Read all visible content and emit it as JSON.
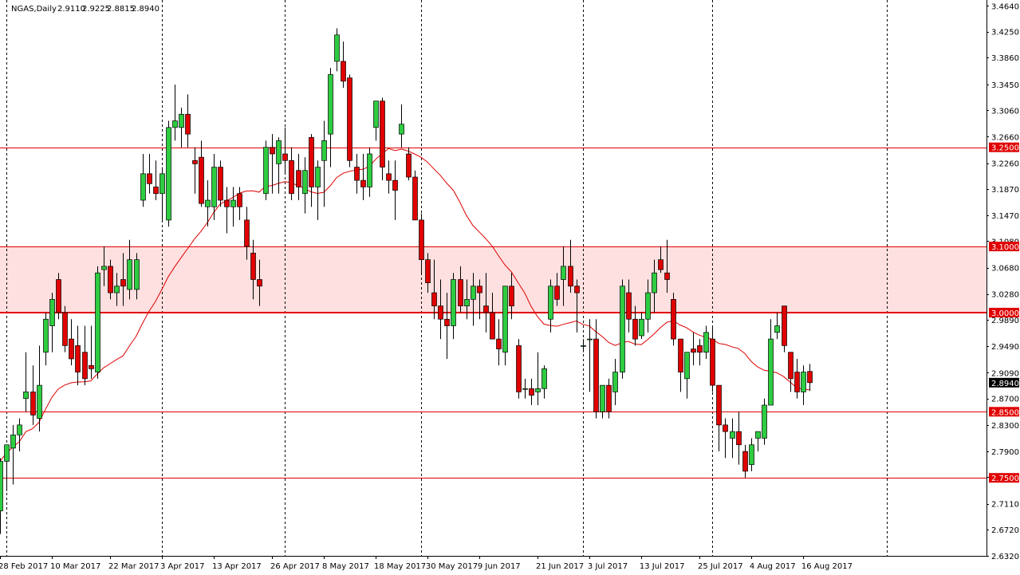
{
  "header": {
    "symbol": "NGAS,Daily",
    "open": "2.9110",
    "high": "2.9225",
    "low": "2.8815",
    "close": "2.8940"
  },
  "colors": {
    "bull": "#2ecc40",
    "bear": "#e00000",
    "wick": "#000000",
    "level_line": "#e00000",
    "zone_fill": "#ffe0e0",
    "ma": "#e00000",
    "price_tag_bg": "#000000",
    "level_tag_bg": "#e00000",
    "grid": "#000000"
  },
  "chart_data": {
    "type": "candlestick",
    "title": "NGAS,Daily",
    "ylim": [
      2.632,
      3.468
    ],
    "y_ticks": [
      "3.4640",
      "3.4250",
      "3.3860",
      "3.3450",
      "3.3060",
      "3.2660",
      "3.2260",
      "3.1870",
      "3.1470",
      "3.1080",
      "3.0680",
      "3.0280",
      "2.9890",
      "2.9490",
      "2.9090",
      "2.8700",
      "2.8300",
      "2.7900",
      "2.7510",
      "2.7110",
      "2.6720",
      "2.6320"
    ],
    "x_ticks": [
      "28 Feb 2017",
      "10 Mar 2017",
      "22 Mar 2017",
      "3 Apr 2017",
      "13 Apr 2017",
      "26 Apr 2017",
      "8 May 2017",
      "18 May 2017",
      "30 May 2017",
      "9 Jun 2017",
      "21 Jun 2017",
      "3 Jul 2017",
      "13 Jul 2017",
      "25 Jul 2017",
      "4 Aug 2017",
      "16 Aug 2017"
    ],
    "x_tick_candle_index": [
      0,
      8,
      17,
      25,
      33,
      42,
      50,
      58,
      66,
      74,
      83,
      91,
      99,
      108,
      116,
      124
    ],
    "weekly_separators_at_candle": [
      1,
      25,
      44,
      65,
      90,
      110,
      137
    ],
    "levels": [
      {
        "value": 3.25,
        "label": "3.2500",
        "width": 1
      },
      {
        "value": 3.1,
        "label": "3.1000",
        "width": 1
      },
      {
        "value": 3.0,
        "label": "3.0000",
        "width": 2
      },
      {
        "value": 2.85,
        "label": "2.8500",
        "width": 1
      },
      {
        "value": 2.75,
        "label": "2.7500",
        "width": 1
      }
    ],
    "zone": {
      "from": 3.0,
      "to": 3.1
    },
    "last_price": "2.8940",
    "candles": [
      {
        "o": 2.7,
        "h": 2.78,
        "l": 2.665,
        "c": 2.775
      },
      {
        "o": 2.775,
        "h": 2.8,
        "l": 2.73,
        "c": 2.8
      },
      {
        "o": 2.795,
        "h": 2.83,
        "l": 2.74,
        "c": 2.815
      },
      {
        "o": 2.815,
        "h": 2.84,
        "l": 2.79,
        "c": 2.83
      },
      {
        "o": 2.87,
        "h": 2.94,
        "l": 2.85,
        "c": 2.88
      },
      {
        "o": 2.88,
        "h": 2.92,
        "l": 2.83,
        "c": 2.845
      },
      {
        "o": 2.84,
        "h": 2.95,
        "l": 2.82,
        "c": 2.89
      },
      {
        "o": 2.94,
        "h": 3.0,
        "l": 2.92,
        "c": 2.99
      },
      {
        "o": 2.98,
        "h": 3.03,
        "l": 2.94,
        "c": 3.02
      },
      {
        "o": 3.05,
        "h": 3.06,
        "l": 2.99,
        "c": 3.0
      },
      {
        "o": 3.0,
        "h": 3.01,
        "l": 2.94,
        "c": 2.95
      },
      {
        "o": 2.96,
        "h": 2.99,
        "l": 2.92,
        "c": 2.93
      },
      {
        "o": 2.95,
        "h": 2.98,
        "l": 2.89,
        "c": 2.91
      },
      {
        "o": 2.94,
        "h": 2.98,
        "l": 2.89,
        "c": 2.9
      },
      {
        "o": 2.92,
        "h": 2.98,
        "l": 2.9,
        "c": 2.915
      },
      {
        "o": 2.91,
        "h": 3.07,
        "l": 2.9,
        "c": 3.06
      },
      {
        "o": 3.065,
        "h": 3.1,
        "l": 3.04,
        "c": 3.07
      },
      {
        "o": 3.07,
        "h": 3.08,
        "l": 3.02,
        "c": 3.03
      },
      {
        "o": 3.03,
        "h": 3.06,
        "l": 3.01,
        "c": 3.04
      },
      {
        "o": 3.05,
        "h": 3.09,
        "l": 3.01,
        "c": 3.04
      },
      {
        "o": 3.035,
        "h": 3.11,
        "l": 3.02,
        "c": 3.08
      },
      {
        "o": 3.035,
        "h": 3.09,
        "l": 3.02,
        "c": 3.08
      },
      {
        "o": 3.17,
        "h": 3.24,
        "l": 3.16,
        "c": 3.21
      },
      {
        "o": 3.21,
        "h": 3.24,
        "l": 3.18,
        "c": 3.195
      },
      {
        "o": 3.19,
        "h": 3.23,
        "l": 3.17,
        "c": 3.18
      },
      {
        "o": 3.18,
        "h": 3.22,
        "l": 3.14,
        "c": 3.21
      },
      {
        "o": 3.14,
        "h": 3.29,
        "l": 3.13,
        "c": 3.28
      },
      {
        "o": 3.28,
        "h": 3.345,
        "l": 3.26,
        "c": 3.29
      },
      {
        "o": 3.28,
        "h": 3.31,
        "l": 3.25,
        "c": 3.3
      },
      {
        "o": 3.3,
        "h": 3.33,
        "l": 3.25,
        "c": 3.27
      },
      {
        "o": 3.23,
        "h": 3.25,
        "l": 3.18,
        "c": 3.225
      },
      {
        "o": 3.235,
        "h": 3.26,
        "l": 3.16,
        "c": 3.165
      },
      {
        "o": 3.16,
        "h": 3.2,
        "l": 3.13,
        "c": 3.17
      },
      {
        "o": 3.16,
        "h": 3.24,
        "l": 3.14,
        "c": 3.22
      },
      {
        "o": 3.22,
        "h": 3.23,
        "l": 3.16,
        "c": 3.17
      },
      {
        "o": 3.17,
        "h": 3.19,
        "l": 3.12,
        "c": 3.16
      },
      {
        "o": 3.16,
        "h": 3.19,
        "l": 3.13,
        "c": 3.17
      },
      {
        "o": 3.18,
        "h": 3.19,
        "l": 3.14,
        "c": 3.16
      },
      {
        "o": 3.14,
        "h": 3.16,
        "l": 3.08,
        "c": 3.1
      },
      {
        "o": 3.09,
        "h": 3.11,
        "l": 3.02,
        "c": 3.05
      },
      {
        "o": 3.05,
        "h": 3.08,
        "l": 3.01,
        "c": 3.04
      },
      {
        "o": 3.18,
        "h": 3.26,
        "l": 3.17,
        "c": 3.25
      },
      {
        "o": 3.25,
        "h": 3.27,
        "l": 3.18,
        "c": 3.24
      },
      {
        "o": 3.225,
        "h": 3.265,
        "l": 3.18,
        "c": 3.26
      },
      {
        "o": 3.24,
        "h": 3.28,
        "l": 3.21,
        "c": 3.23
      },
      {
        "o": 3.23,
        "h": 3.25,
        "l": 3.17,
        "c": 3.18
      },
      {
        "o": 3.215,
        "h": 3.24,
        "l": 3.17,
        "c": 3.19
      },
      {
        "o": 3.18,
        "h": 3.235,
        "l": 3.15,
        "c": 3.215
      },
      {
        "o": 3.265,
        "h": 3.27,
        "l": 3.16,
        "c": 3.19
      },
      {
        "o": 3.19,
        "h": 3.23,
        "l": 3.14,
        "c": 3.22
      },
      {
        "o": 3.23,
        "h": 3.29,
        "l": 3.16,
        "c": 3.26
      },
      {
        "o": 3.27,
        "h": 3.37,
        "l": 3.22,
        "c": 3.36
      },
      {
        "o": 3.38,
        "h": 3.43,
        "l": 3.365,
        "c": 3.42
      },
      {
        "o": 3.38,
        "h": 3.41,
        "l": 3.34,
        "c": 3.35
      },
      {
        "o": 3.355,
        "h": 3.36,
        "l": 3.22,
        "c": 3.23
      },
      {
        "o": 3.22,
        "h": 3.24,
        "l": 3.18,
        "c": 3.2
      },
      {
        "o": 3.2,
        "h": 3.24,
        "l": 3.17,
        "c": 3.19
      },
      {
        "o": 3.19,
        "h": 3.25,
        "l": 3.175,
        "c": 3.24
      },
      {
        "o": 3.28,
        "h": 3.315,
        "l": 3.26,
        "c": 3.32
      },
      {
        "o": 3.32,
        "h": 3.325,
        "l": 3.2,
        "c": 3.22
      },
      {
        "o": 3.21,
        "h": 3.23,
        "l": 3.18,
        "c": 3.2
      },
      {
        "o": 3.2,
        "h": 3.23,
        "l": 3.14,
        "c": 3.185
      },
      {
        "o": 3.27,
        "h": 3.315,
        "l": 3.25,
        "c": 3.285
      },
      {
        "o": 3.24,
        "h": 3.25,
        "l": 3.2,
        "c": 3.205
      },
      {
        "o": 3.205,
        "h": 3.215,
        "l": 3.14,
        "c": 3.14
      },
      {
        "o": 3.14,
        "h": 3.15,
        "l": 3.06,
        "c": 3.08
      },
      {
        "o": 3.08,
        "h": 3.09,
        "l": 3.03,
        "c": 3.045
      },
      {
        "o": 3.03,
        "h": 3.08,
        "l": 2.99,
        "c": 3.01
      },
      {
        "o": 3.01,
        "h": 3.05,
        "l": 2.96,
        "c": 2.99
      },
      {
        "o": 2.99,
        "h": 3.03,
        "l": 2.93,
        "c": 2.98
      },
      {
        "o": 2.98,
        "h": 3.06,
        "l": 2.96,
        "c": 3.05
      },
      {
        "o": 3.05,
        "h": 3.07,
        "l": 3.0,
        "c": 3.01
      },
      {
        "o": 3.01,
        "h": 3.05,
        "l": 2.99,
        "c": 3.02
      },
      {
        "o": 3.02,
        "h": 3.06,
        "l": 2.98,
        "c": 3.04
      },
      {
        "o": 3.04,
        "h": 3.05,
        "l": 2.99,
        "c": 3.03
      },
      {
        "o": 3.01,
        "h": 3.06,
        "l": 2.97,
        "c": 3.0
      },
      {
        "o": 3.0,
        "h": 3.03,
        "l": 2.96,
        "c": 2.96
      },
      {
        "o": 2.96,
        "h": 2.99,
        "l": 2.92,
        "c": 2.945
      },
      {
        "o": 2.94,
        "h": 3.04,
        "l": 2.92,
        "c": 3.04
      },
      {
        "o": 3.04,
        "h": 3.06,
        "l": 2.99,
        "c": 3.01
      },
      {
        "o": 2.95,
        "h": 2.96,
        "l": 2.87,
        "c": 2.88
      },
      {
        "o": 2.885,
        "h": 2.9,
        "l": 2.87,
        "c": 2.885
      },
      {
        "o": 2.885,
        "h": 2.9,
        "l": 2.86,
        "c": 2.875
      },
      {
        "o": 2.88,
        "h": 2.94,
        "l": 2.86,
        "c": 2.885
      },
      {
        "o": 2.885,
        "h": 2.92,
        "l": 2.87,
        "c": 2.915
      },
      {
        "o": 2.99,
        "h": 3.05,
        "l": 2.97,
        "c": 3.04
      },
      {
        "o": 3.04,
        "h": 3.06,
        "l": 3.01,
        "c": 3.02
      },
      {
        "o": 3.05,
        "h": 3.1,
        "l": 3.01,
        "c": 3.07
      },
      {
        "o": 3.07,
        "h": 3.11,
        "l": 3.03,
        "c": 3.04
      },
      {
        "o": 3.04,
        "h": 3.05,
        "l": 2.97,
        "c": 3.03
      },
      {
        "o": 2.95,
        "h": 2.96,
        "l": 2.94,
        "c": 2.95
      },
      {
        "o": 2.96,
        "h": 2.99,
        "l": 2.88,
        "c": 2.96
      },
      {
        "o": 2.96,
        "h": 2.99,
        "l": 2.84,
        "c": 2.85
      },
      {
        "o": 2.85,
        "h": 2.89,
        "l": 2.84,
        "c": 2.89
      },
      {
        "o": 2.89,
        "h": 2.9,
        "l": 2.84,
        "c": 2.85
      },
      {
        "o": 2.88,
        "h": 2.93,
        "l": 2.86,
        "c": 2.91
      },
      {
        "o": 2.91,
        "h": 3.05,
        "l": 2.9,
        "c": 3.04
      },
      {
        "o": 3.03,
        "h": 3.05,
        "l": 2.97,
        "c": 2.99
      },
      {
        "o": 2.99,
        "h": 3.01,
        "l": 2.95,
        "c": 2.96
      },
      {
        "o": 2.965,
        "h": 3.0,
        "l": 2.96,
        "c": 2.99
      },
      {
        "o": 2.99,
        "h": 3.05,
        "l": 2.97,
        "c": 3.03
      },
      {
        "o": 3.03,
        "h": 3.08,
        "l": 3.0,
        "c": 3.06
      },
      {
        "o": 3.08,
        "h": 3.1,
        "l": 3.06,
        "c": 3.065
      },
      {
        "o": 3.06,
        "h": 3.11,
        "l": 3.03,
        "c": 3.05
      },
      {
        "o": 3.02,
        "h": 3.03,
        "l": 2.95,
        "c": 2.96
      },
      {
        "o": 2.96,
        "h": 2.96,
        "l": 2.88,
        "c": 2.91
      },
      {
        "o": 2.9,
        "h": 2.94,
        "l": 2.87,
        "c": 2.94
      },
      {
        "o": 2.945,
        "h": 2.97,
        "l": 2.92,
        "c": 2.94
      },
      {
        "o": 2.95,
        "h": 2.96,
        "l": 2.92,
        "c": 2.94
      },
      {
        "o": 2.94,
        "h": 2.98,
        "l": 2.93,
        "c": 2.97
      },
      {
        "o": 2.96,
        "h": 2.98,
        "l": 2.88,
        "c": 2.89
      },
      {
        "o": 2.89,
        "h": 2.89,
        "l": 2.79,
        "c": 2.83
      },
      {
        "o": 2.83,
        "h": 2.84,
        "l": 2.78,
        "c": 2.82
      },
      {
        "o": 2.81,
        "h": 2.84,
        "l": 2.78,
        "c": 2.82
      },
      {
        "o": 2.82,
        "h": 2.85,
        "l": 2.77,
        "c": 2.8
      },
      {
        "o": 2.79,
        "h": 2.8,
        "l": 2.75,
        "c": 2.76
      },
      {
        "o": 2.77,
        "h": 2.81,
        "l": 2.76,
        "c": 2.8
      },
      {
        "o": 2.81,
        "h": 2.82,
        "l": 2.79,
        "c": 2.82
      },
      {
        "o": 2.81,
        "h": 2.87,
        "l": 2.8,
        "c": 2.86
      },
      {
        "o": 2.86,
        "h": 2.99,
        "l": 2.86,
        "c": 2.96
      },
      {
        "o": 2.97,
        "h": 3.0,
        "l": 2.96,
        "c": 2.98
      },
      {
        "o": 3.01,
        "h": 3.01,
        "l": 2.94,
        "c": 2.95
      },
      {
        "o": 2.94,
        "h": 2.94,
        "l": 2.88,
        "c": 2.9
      },
      {
        "o": 2.91,
        "h": 2.93,
        "l": 2.87,
        "c": 2.88
      },
      {
        "o": 2.88,
        "h": 2.92,
        "l": 2.86,
        "c": 2.91
      },
      {
        "o": 2.911,
        "h": 2.9225,
        "l": 2.8815,
        "c": 2.894
      }
    ]
  }
}
